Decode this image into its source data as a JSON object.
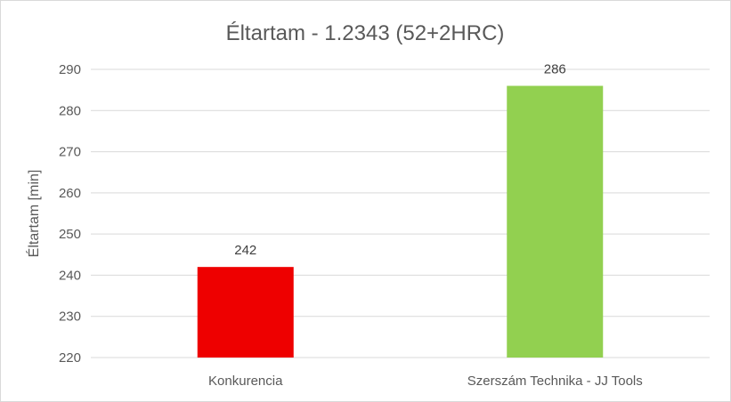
{
  "chart_data": {
    "type": "bar",
    "title": "Éltartam - 1.2343 (52+2HRC)",
    "xlabel": "",
    "ylabel": "Éltartam [min]",
    "categories": [
      "Konkurencia",
      "Szerszám Technika - JJ Tools"
    ],
    "values": [
      242,
      286
    ],
    "data_labels": [
      "242",
      "286"
    ],
    "bar_colors": [
      "#ee0000",
      "#92d050"
    ],
    "ylim": [
      220,
      290
    ],
    "yticks": [
      220,
      230,
      240,
      250,
      260,
      270,
      280,
      290
    ],
    "grid": true,
    "legend": "none"
  }
}
